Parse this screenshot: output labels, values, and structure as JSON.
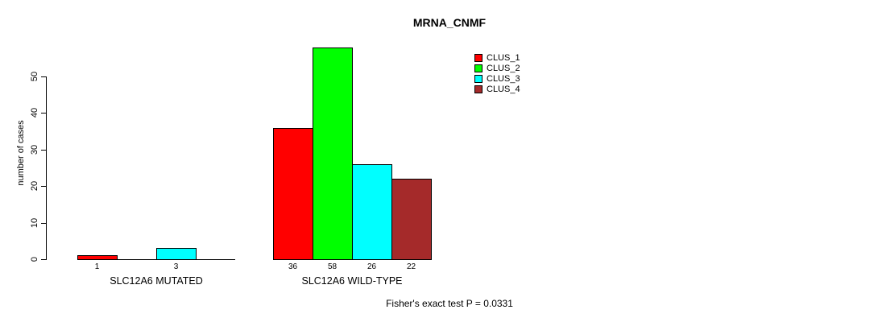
{
  "chart_data": {
    "type": "bar",
    "title": "MRNA_CNMF",
    "ylabel": "number of cases",
    "xlabel": "",
    "ylim": [
      0,
      58
    ],
    "yticks": [
      0,
      10,
      20,
      30,
      40,
      50
    ],
    "grid": false,
    "legend_position": "top-right",
    "legend": [
      {
        "label": "CLUS_1",
        "color": "#ff0000"
      },
      {
        "label": "CLUS_2",
        "color": "#00ff00"
      },
      {
        "label": "CLUS_3",
        "color": "#00ffff"
      },
      {
        "label": "CLUS_4",
        "color": "#a52a2a"
      }
    ],
    "groups": [
      {
        "label": "SLC12A6 MUTATED",
        "values": [
          1,
          0,
          3,
          0
        ],
        "bar_labels": [
          "1",
          "",
          "3",
          ""
        ]
      },
      {
        "label": "SLC12A6 WILD-TYPE",
        "values": [
          36,
          58,
          26,
          22
        ],
        "bar_labels": [
          "36",
          "58",
          "26",
          "22"
        ]
      }
    ],
    "annotation": "Fisher's exact test P = 0.0331"
  }
}
